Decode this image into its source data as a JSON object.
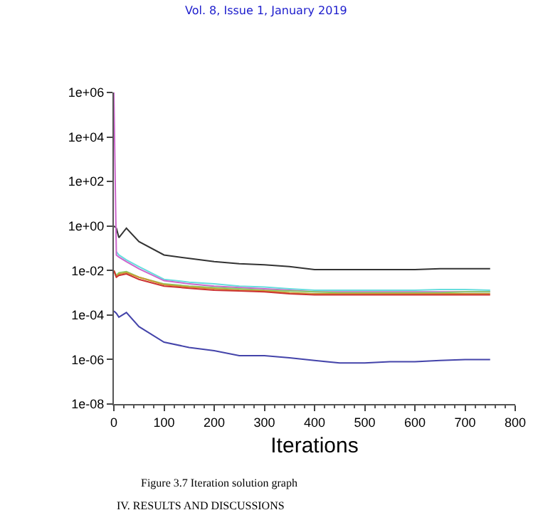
{
  "chart_data": {
    "type": "line",
    "xlabel": "Iterations",
    "log": "y",
    "annotations": [
      "Vol. 8, Issue 1, January 2019",
      "Figure 3.7 Iteration solution graph",
      "IV. RESULTS AND DISCUSSIONS"
    ],
    "xlim": [
      0,
      800
    ],
    "xticks": [
      0,
      100,
      200,
      300,
      400,
      500,
      600,
      700,
      800
    ],
    "ylim": [
      1e-08,
      1000000
    ],
    "yticks": [
      {
        "value": 1e-08,
        "label": "1e-08"
      },
      {
        "value": 1e-06,
        "label": "1e-06"
      },
      {
        "value": 0.0001,
        "label": "1e-04"
      },
      {
        "value": 0.01,
        "label": "1e-02"
      },
      {
        "value": 1,
        "label": "1e+00"
      },
      {
        "value": 100,
        "label": "1e+02"
      },
      {
        "value": 10000,
        "label": "1e+04"
      },
      {
        "value": 1000000,
        "label": "1e+06"
      }
    ],
    "x": [
      0,
      5,
      10,
      25,
      50,
      100,
      150,
      200,
      250,
      300,
      350,
      400,
      450,
      500,
      550,
      600,
      650,
      700,
      750
    ],
    "series": [
      {
        "color": "#333333",
        "values": [
          1,
          0.8,
          0.3,
          0.8,
          0.2,
          0.05,
          0.035,
          0.025,
          0.02,
          0.018,
          0.015,
          0.011,
          0.011,
          0.011,
          0.011,
          0.011,
          0.012,
          0.012,
          0.012
        ]
      },
      {
        "color": "#66dddd",
        "values": [
          null,
          0.07,
          0.05,
          0.03,
          0.015,
          0.004,
          0.003,
          0.0025,
          0.002,
          0.0018,
          0.0015,
          0.0013,
          0.0013,
          0.0013,
          0.0013,
          0.0013,
          0.0014,
          0.0014,
          0.0013
        ]
      },
      {
        "color": "#cc66cc",
        "values": [
          1000000,
          0.05,
          0.04,
          0.025,
          0.012,
          0.0035,
          0.0025,
          0.002,
          0.0017,
          0.0015,
          0.0013,
          0.0011,
          0.0011,
          0.0011,
          0.0011,
          0.0011,
          0.0011,
          0.0011,
          0.0011
        ]
      },
      {
        "color": "#88cc66",
        "values": [
          0.01,
          0.006,
          0.008,
          0.009,
          0.005,
          0.0025,
          0.002,
          0.0017,
          0.0015,
          0.0013,
          0.0012,
          0.0011,
          0.001,
          0.001,
          0.001,
          0.001,
          0.001,
          0.0011,
          0.0011
        ]
      },
      {
        "color": "#cc9933",
        "values": [
          0.01,
          0.005,
          0.007,
          0.008,
          0.005,
          0.0023,
          0.0018,
          0.0015,
          0.0013,
          0.0012,
          0.001,
          0.0009,
          0.0009,
          0.0009,
          0.0009,
          0.0009,
          0.0009,
          0.0009,
          0.0009
        ]
      },
      {
        "color": "#cc3333",
        "values": [
          0.01,
          0.005,
          0.006,
          0.007,
          0.004,
          0.002,
          0.0016,
          0.0013,
          0.0012,
          0.0011,
          0.0009,
          0.0008,
          0.0008,
          0.0008,
          0.0008,
          0.0008,
          0.0008,
          0.0008,
          0.0008
        ]
      },
      {
        "color": "#4444aa",
        "values": [
          0.00015,
          0.00012,
          8e-05,
          0.00013,
          3e-05,
          6e-06,
          3.5e-06,
          2.5e-06,
          1.5e-06,
          1.5e-06,
          1.2e-06,
          9e-07,
          7e-07,
          7e-07,
          8e-07,
          8e-07,
          9e-07,
          1e-06,
          1e-06
        ]
      }
    ]
  }
}
